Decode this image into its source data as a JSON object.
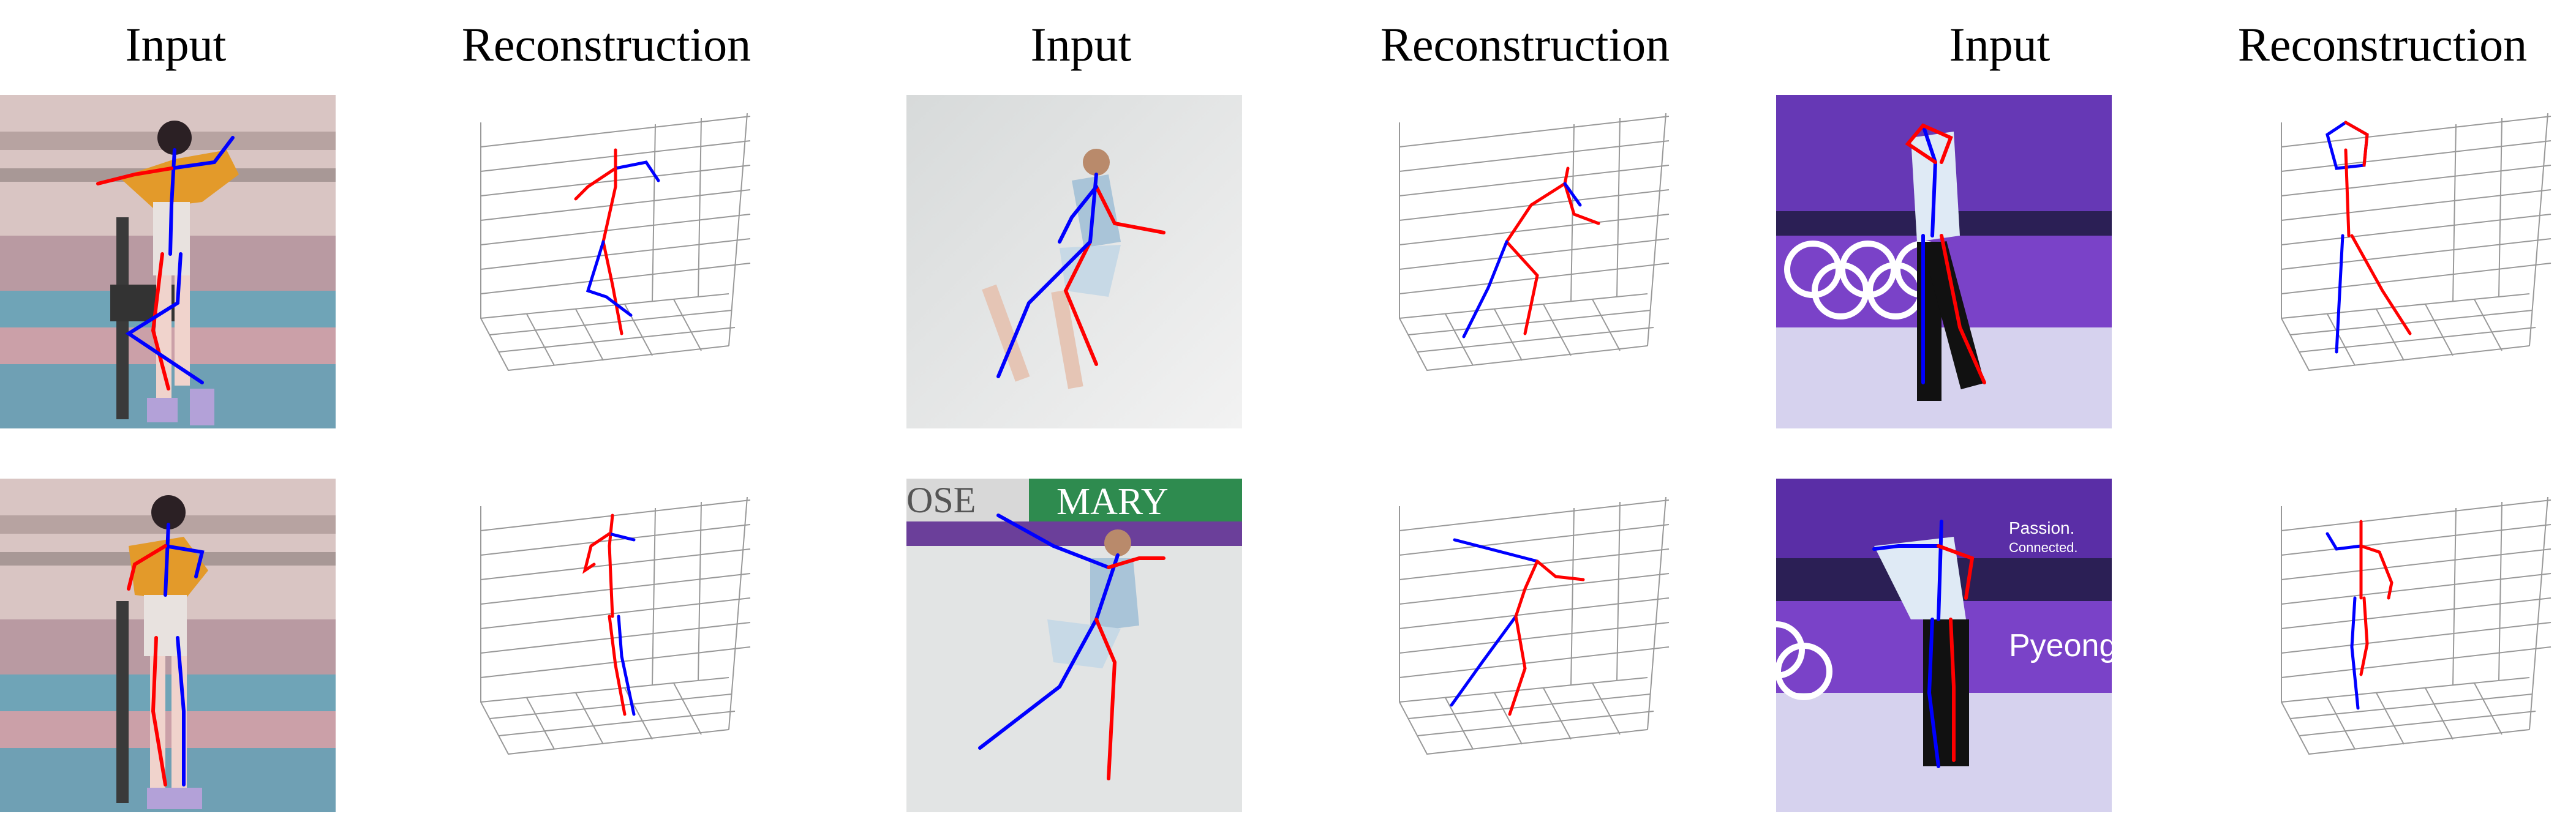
{
  "figure": {
    "columns": [
      {
        "header": "Input"
      },
      {
        "header": "Reconstruction"
      },
      {
        "header": "Input"
      },
      {
        "header": "Reconstruction"
      },
      {
        "header": "Input"
      },
      {
        "header": "Reconstruction"
      }
    ]
  },
  "colors": {
    "left_limb": "#ff0000",
    "right_limb": "#0000ff",
    "joint": "#00cc00",
    "grid": "#999999"
  }
}
